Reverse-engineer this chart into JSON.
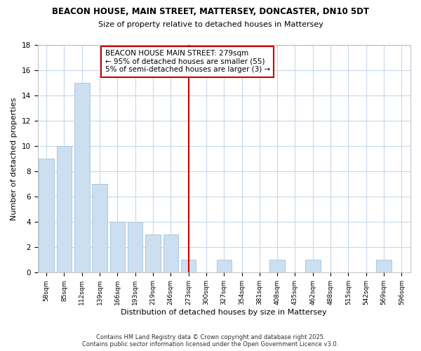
{
  "title1": "BEACON HOUSE, MAIN STREET, MATTERSEY, DONCASTER, DN10 5DT",
  "title2": "Size of property relative to detached houses in Mattersey",
  "xlabel": "Distribution of detached houses by size in Mattersey",
  "ylabel": "Number of detached properties",
  "categories": [
    "58sqm",
    "85sqm",
    "112sqm",
    "139sqm",
    "166sqm",
    "193sqm",
    "219sqm",
    "246sqm",
    "273sqm",
    "300sqm",
    "327sqm",
    "354sqm",
    "381sqm",
    "408sqm",
    "435sqm",
    "462sqm",
    "488sqm",
    "515sqm",
    "542sqm",
    "569sqm",
    "596sqm"
  ],
  "values": [
    9,
    10,
    15,
    7,
    4,
    4,
    3,
    3,
    1,
    0,
    1,
    0,
    0,
    1,
    0,
    1,
    0,
    0,
    0,
    1,
    0
  ],
  "bar_color": "#ccdff0",
  "bar_edge_color": "#a8c8e0",
  "vline_index": 8,
  "vline_color": "#cc0000",
  "annotation_title": "BEACON HOUSE MAIN STREET: 279sqm",
  "annotation_line1": "← 95% of detached houses are smaller (55)",
  "annotation_line2": "5% of semi-detached houses are larger (3) →",
  "footer": "Contains HM Land Registry data © Crown copyright and database right 2025.\nContains public sector information licensed under the Open Government Licence v3.0.",
  "bg_color": "#ffffff",
  "plot_bg_color": "#ffffff",
  "grid_color": "#c8d8e8",
  "ylim": [
    0,
    18
  ],
  "yticks": [
    0,
    2,
    4,
    6,
    8,
    10,
    12,
    14,
    16,
    18
  ]
}
